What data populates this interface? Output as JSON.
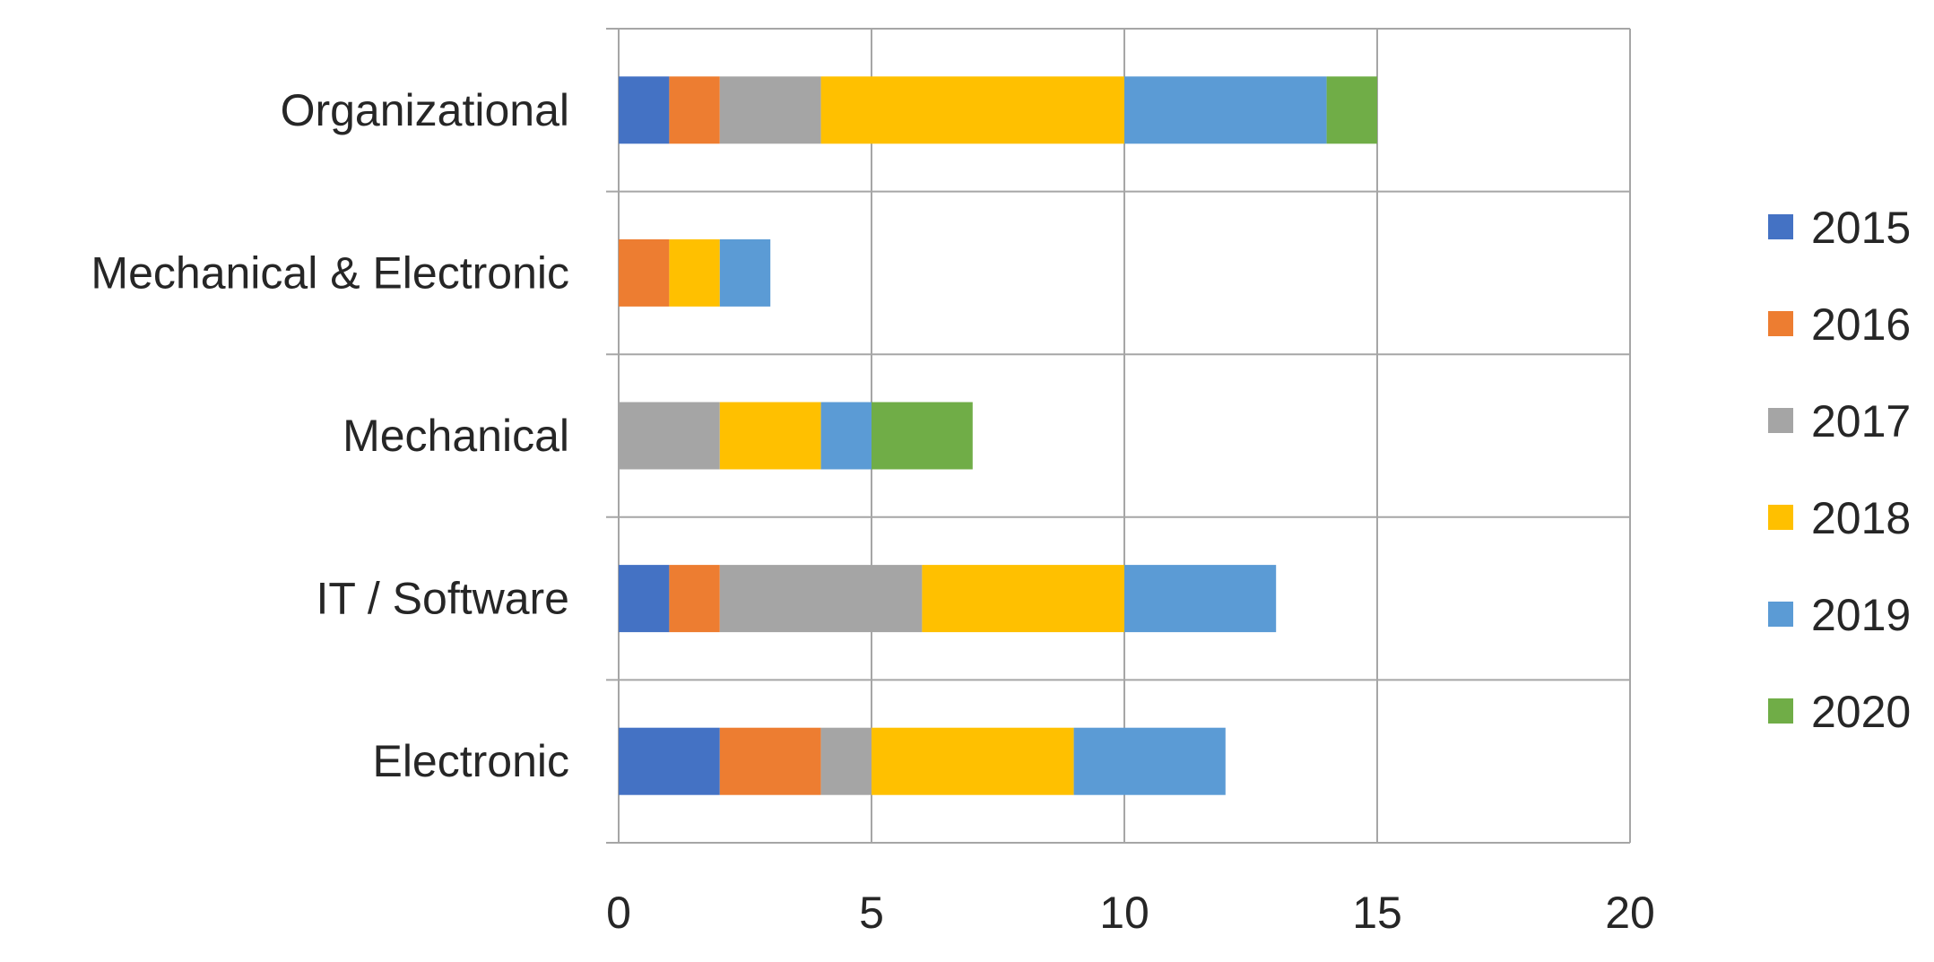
{
  "chart_data": {
    "type": "bar",
    "orientation": "horizontal",
    "stacked": true,
    "categories": [
      "Electronic",
      "IT / Software",
      "Mechanical",
      "Mechanical & Electronic",
      "Organizational"
    ],
    "series": [
      {
        "name": "2015",
        "color": "#4472C4",
        "values": [
          2,
          1,
          0,
          0,
          1
        ]
      },
      {
        "name": "2016",
        "color": "#ED7D31",
        "values": [
          2,
          1,
          0,
          1,
          1
        ]
      },
      {
        "name": "2017",
        "color": "#A5A5A5",
        "values": [
          1,
          4,
          2,
          0,
          2
        ]
      },
      {
        "name": "2018",
        "color": "#FFC000",
        "values": [
          4,
          4,
          2,
          1,
          6
        ]
      },
      {
        "name": "2019",
        "color": "#5B9BD5",
        "values": [
          3,
          3,
          1,
          1,
          4
        ]
      },
      {
        "name": "2020",
        "color": "#70AD47",
        "values": [
          0,
          0,
          2,
          0,
          1
        ]
      }
    ],
    "xlim": [
      0,
      20
    ],
    "x_ticks": [
      0,
      5,
      10,
      15,
      20
    ],
    "grid": true,
    "legend_position": "right"
  }
}
